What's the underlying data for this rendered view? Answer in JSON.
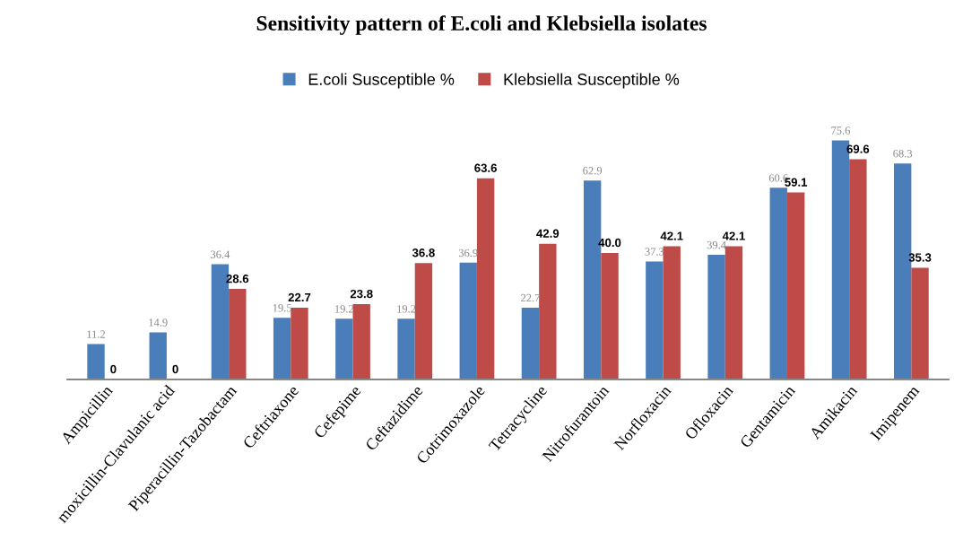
{
  "chart_data": {
    "type": "bar",
    "title": "Sensitivity pattern of E.coli and Klebsiella isolates",
    "categories": [
      "Ampicillin",
      "moxicillin-Clavulanic acid",
      "Piperacillin-Tazobactam",
      "Ceftriaxone",
      "Cefepime",
      "Ceftazidime",
      "Cotrimoxazole",
      "Tetracycline",
      "Nitrofurantoin",
      "Norfloxacin",
      "Ofloxacin",
      "Gentamicin",
      "Amikacin",
      "Imipenem"
    ],
    "series": [
      {
        "name": "E.coli Susceptible %",
        "color": "#4a7ebb",
        "values": [
          11.2,
          14.9,
          36.4,
          19.5,
          19.2,
          19.2,
          36.9,
          22.7,
          62.9,
          37.3,
          39.4,
          60.6,
          75.6,
          68.3
        ],
        "value_labels": [
          "11.2",
          "14.9",
          "36.4",
          "19.5",
          "19.2",
          "19.2",
          "36.9",
          "22.7",
          "62.9",
          "37.3",
          "39.4",
          "60.6",
          "75.6",
          "68.3"
        ]
      },
      {
        "name": "Klebsiella Susceptible %",
        "color": "#be4b48",
        "values": [
          0,
          0,
          28.6,
          22.7,
          23.8,
          36.8,
          63.6,
          42.9,
          40.0,
          42.1,
          42.1,
          59.1,
          69.6,
          35.3
        ],
        "value_labels": [
          "0",
          "0",
          "28.6",
          "22.7",
          "23.8",
          "36.8",
          "63.6",
          "42.9",
          "40.0",
          "42.1",
          "42.1",
          "59.1",
          "69.6",
          "35.3"
        ]
      }
    ],
    "legend": "top",
    "grid": false,
    "tick_labels": "x"
  }
}
